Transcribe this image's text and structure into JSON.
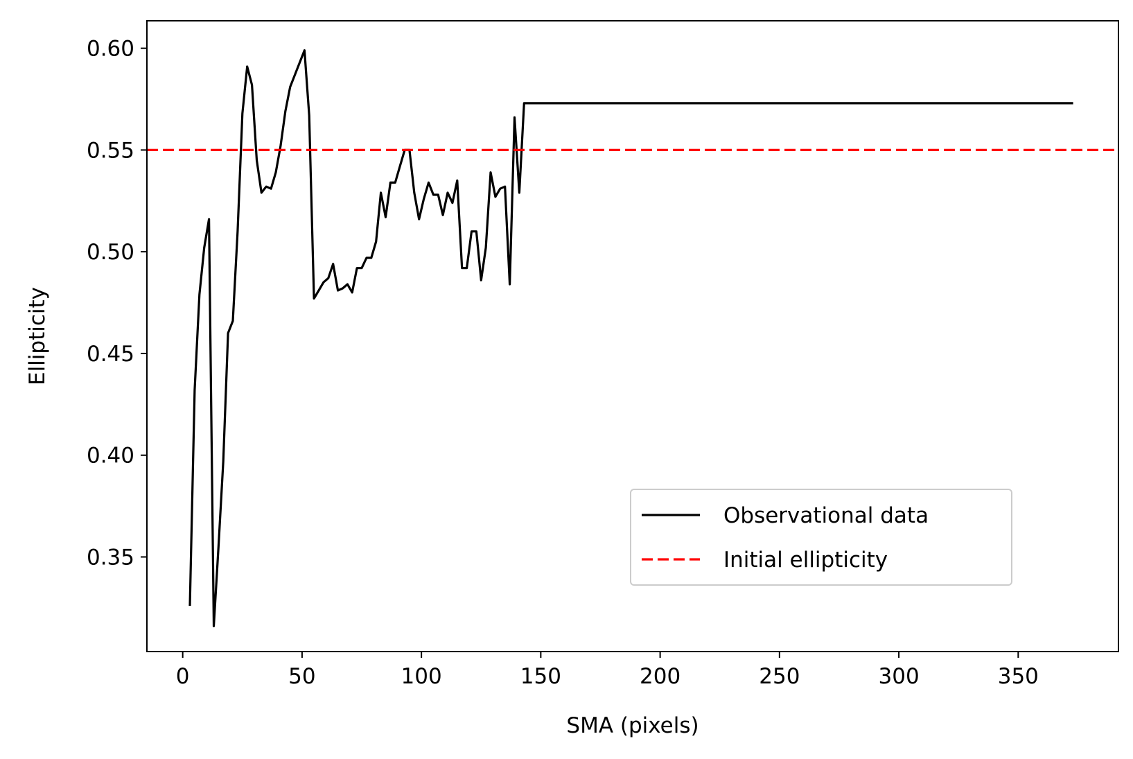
{
  "chart_data": {
    "type": "line",
    "title": "",
    "xlabel": "SMA (pixels)",
    "ylabel": "Ellipticity",
    "xlim": [
      -15,
      392
    ],
    "ylim": [
      0.3035,
      0.6135
    ],
    "xticks": [
      0,
      50,
      100,
      150,
      200,
      250,
      300,
      350
    ],
    "yticks": [
      0.35,
      0.4,
      0.45,
      0.5,
      0.55,
      0.6
    ],
    "xtick_labels": [
      "0",
      "50",
      "100",
      "150",
      "200",
      "250",
      "300",
      "350"
    ],
    "ytick_labels": [
      "0.35",
      "0.40",
      "0.45",
      "0.50",
      "0.55",
      "0.60"
    ],
    "grid": false,
    "legend_position": "lower-right",
    "series": [
      {
        "name": "Observational data",
        "style": "solid",
        "color": "#000000",
        "points": [
          [
            3,
            0.326
          ],
          [
            5,
            0.432
          ],
          [
            7,
            0.479
          ],
          [
            9,
            0.502
          ],
          [
            11,
            0.516
          ],
          [
            13,
            0.316
          ],
          [
            15,
            0.355
          ],
          [
            17,
            0.397
          ],
          [
            19,
            0.46
          ],
          [
            21,
            0.466
          ],
          [
            23,
            0.51
          ],
          [
            25,
            0.568
          ],
          [
            27,
            0.591
          ],
          [
            29,
            0.582
          ],
          [
            31,
            0.545
          ],
          [
            33,
            0.529
          ],
          [
            35,
            0.532
          ],
          [
            37,
            0.531
          ],
          [
            39,
            0.539
          ],
          [
            41,
            0.552
          ],
          [
            43,
            0.569
          ],
          [
            45,
            0.581
          ],
          [
            47,
            0.587
          ],
          [
            49,
            0.593
          ],
          [
            51,
            0.599
          ],
          [
            53,
            0.567
          ],
          [
            55,
            0.477
          ],
          [
            57,
            0.481
          ],
          [
            59,
            0.485
          ],
          [
            61,
            0.487
          ],
          [
            63,
            0.494
          ],
          [
            65,
            0.481
          ],
          [
            67,
            0.482
          ],
          [
            69,
            0.484
          ],
          [
            71,
            0.48
          ],
          [
            73,
            0.492
          ],
          [
            75,
            0.492
          ],
          [
            77,
            0.497
          ],
          [
            79,
            0.497
          ],
          [
            81,
            0.505
          ],
          [
            83,
            0.529
          ],
          [
            85,
            0.517
          ],
          [
            87,
            0.534
          ],
          [
            89,
            0.534
          ],
          [
            91,
            0.542
          ],
          [
            93,
            0.55
          ],
          [
            95,
            0.55
          ],
          [
            97,
            0.529
          ],
          [
            99,
            0.516
          ],
          [
            101,
            0.526
          ],
          [
            103,
            0.534
          ],
          [
            105,
            0.528
          ],
          [
            107,
            0.528
          ],
          [
            109,
            0.518
          ],
          [
            111,
            0.529
          ],
          [
            113,
            0.524
          ],
          [
            115,
            0.535
          ],
          [
            117,
            0.492
          ],
          [
            119,
            0.492
          ],
          [
            121,
            0.51
          ],
          [
            123,
            0.51
          ],
          [
            125,
            0.486
          ],
          [
            127,
            0.502
          ],
          [
            129,
            0.539
          ],
          [
            131,
            0.527
          ],
          [
            133,
            0.531
          ],
          [
            135,
            0.532
          ],
          [
            137,
            0.484
          ],
          [
            139,
            0.566
          ],
          [
            141,
            0.529
          ],
          [
            143,
            0.573
          ],
          [
            150,
            0.573
          ],
          [
            200,
            0.573
          ],
          [
            250,
            0.573
          ],
          [
            300,
            0.573
          ],
          [
            350,
            0.573
          ],
          [
            373,
            0.573
          ]
        ]
      },
      {
        "name": "Initial ellipticity",
        "style": "dashed",
        "color": "#ff0000",
        "hline": 0.55
      }
    ]
  }
}
